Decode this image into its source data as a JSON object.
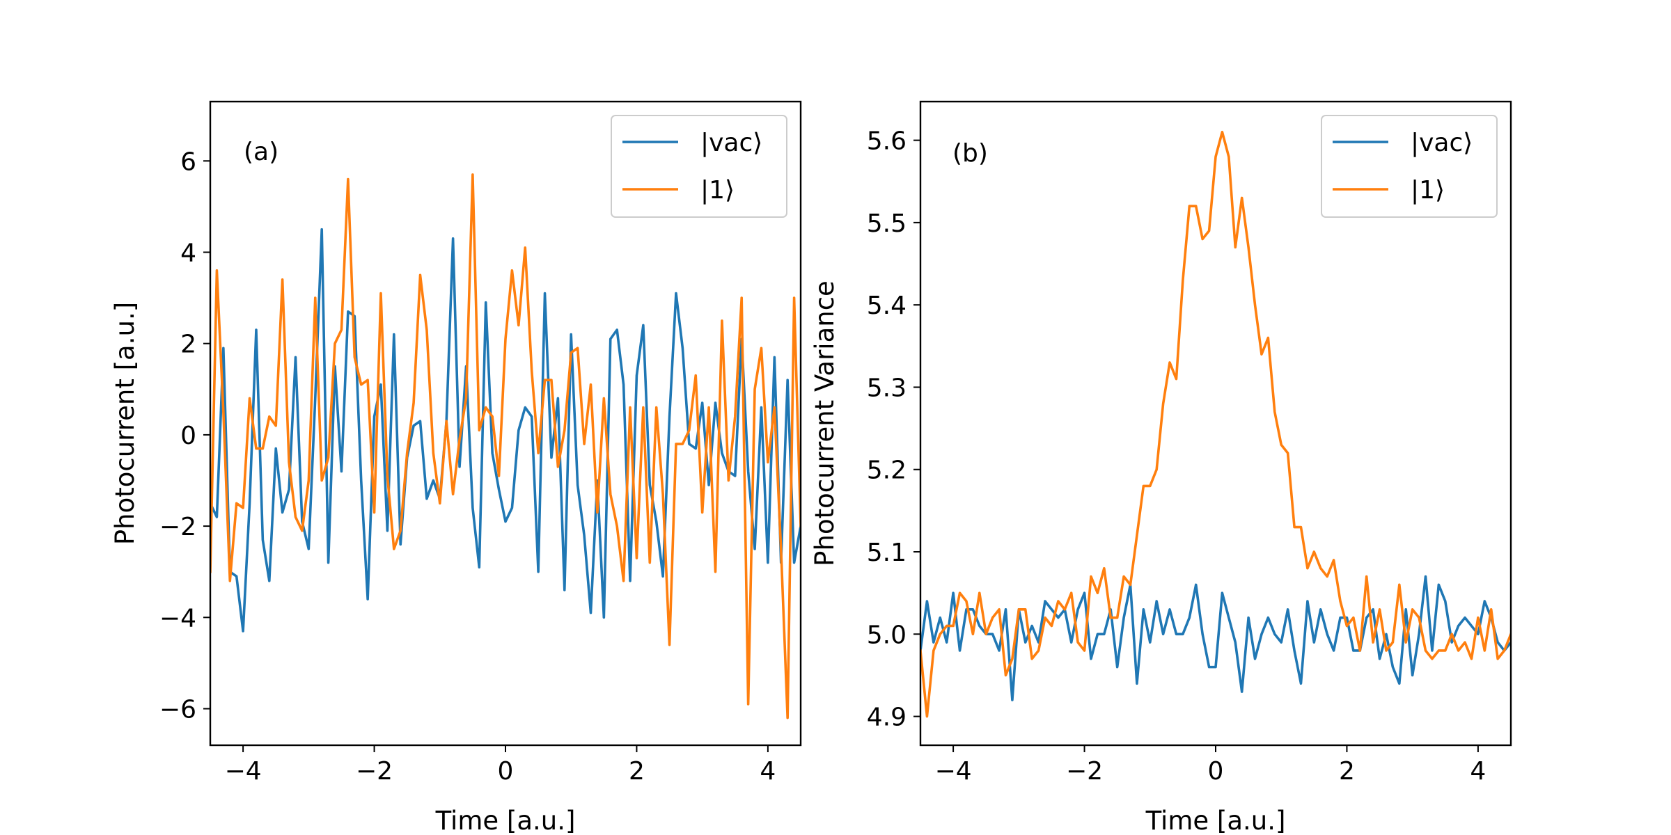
{
  "chart_data": [
    {
      "type": "line",
      "panel_label": "(a)",
      "xlabel": "Time [a.u.]",
      "ylabel": "Photocurrent [a.u.]",
      "xlim": [
        -4.5,
        4.5
      ],
      "ylim": [
        -6.8,
        7.3
      ],
      "xticks": [
        -4,
        -2,
        0,
        2,
        4
      ],
      "xtick_labels": [
        "−4",
        "−2",
        "0",
        "2",
        "4"
      ],
      "yticks": [
        -6,
        -4,
        -2,
        0,
        2,
        4,
        6
      ],
      "ytick_labels": [
        "−6",
        "−4",
        "−2",
        "0",
        "2",
        "4",
        "6"
      ],
      "legend": {
        "position": "top-right",
        "entries": [
          "|vac⟩",
          "|1⟩"
        ]
      },
      "x": [
        -4.5,
        -4.4,
        -4.3,
        -4.2,
        -4.1,
        -4.0,
        -3.9,
        -3.8,
        -3.7,
        -3.6,
        -3.5,
        -3.4,
        -3.3,
        -3.2,
        -3.1,
        -3.0,
        -2.9,
        -2.8,
        -2.7,
        -2.6,
        -2.5,
        -2.4,
        -2.3,
        -2.2,
        -2.1,
        -2.0,
        -1.9,
        -1.8,
        -1.7,
        -1.6,
        -1.5,
        -1.4,
        -1.3,
        -1.2,
        -1.1,
        -1.0,
        -0.9,
        -0.8,
        -0.7,
        -0.6,
        -0.5,
        -0.4,
        -0.3,
        -0.2,
        -0.1,
        0.0,
        0.1,
        0.2,
        0.3,
        0.4,
        0.5,
        0.6,
        0.7,
        0.8,
        0.9,
        1.0,
        1.1,
        1.2,
        1.3,
        1.4,
        1.5,
        1.6,
        1.7,
        1.8,
        1.9,
        2.0,
        2.1,
        2.2,
        2.3,
        2.4,
        2.5,
        2.6,
        2.7,
        2.8,
        2.9,
        3.0,
        3.1,
        3.2,
        3.3,
        3.4,
        3.5,
        3.6,
        3.7,
        3.8,
        3.9,
        4.0,
        4.1,
        4.2,
        4.3,
        4.4,
        4.5
      ],
      "series": [
        {
          "name": "|vac⟩",
          "color": "#1f77b4",
          "values": [
            -1.5,
            -1.8,
            1.9,
            -3.0,
            -3.1,
            -4.3,
            -1.5,
            2.3,
            -2.3,
            -3.2,
            -0.3,
            -1.7,
            -1.2,
            1.7,
            -1.9,
            -2.5,
            0.8,
            4.5,
            -2.8,
            1.5,
            -0.8,
            2.7,
            2.6,
            -1.0,
            -3.6,
            0.4,
            1.1,
            -2.1,
            2.2,
            -2.4,
            -0.5,
            0.2,
            0.3,
            -1.4,
            -1.0,
            -1.4,
            0.3,
            4.3,
            -0.7,
            1.5,
            -1.6,
            -2.9,
            2.9,
            -0.4,
            -1.2,
            -1.9,
            -1.6,
            0.1,
            0.6,
            0.4,
            -3.0,
            3.1,
            -0.5,
            0.8,
            -3.4,
            2.2,
            -1.1,
            -2.2,
            -3.9,
            -1.0,
            -4.0,
            2.1,
            2.3,
            1.1,
            -3.2,
            1.3,
            2.4,
            -1.1,
            -1.9,
            -3.1,
            0.4,
            3.1,
            1.9,
            -0.2,
            -0.3,
            0.7,
            -1.1,
            0.7,
            -0.4,
            -0.8,
            -0.9,
            2.1,
            -0.8,
            -2.5,
            0.6,
            -2.8,
            1.7,
            -2.8,
            1.2,
            -2.8,
            -2.0
          ]
        },
        {
          "name": "|1⟩",
          "color": "#ff7f0e",
          "values": [
            -3.0,
            3.6,
            0.5,
            -3.2,
            -1.5,
            -1.6,
            0.8,
            -0.3,
            -0.3,
            0.4,
            0.2,
            3.4,
            -0.6,
            -1.8,
            -2.1,
            -1.0,
            3.0,
            -1.0,
            -0.5,
            2.0,
            2.3,
            5.6,
            1.7,
            1.1,
            1.2,
            -1.7,
            3.1,
            -0.9,
            -2.5,
            -2.1,
            -0.4,
            0.7,
            3.5,
            2.3,
            -0.4,
            -1.5,
            0.3,
            -1.3,
            -0.1,
            0.8,
            5.7,
            0.1,
            0.6,
            0.4,
            -0.9,
            2.1,
            3.6,
            2.4,
            4.1,
            1.4,
            -0.4,
            1.2,
            1.2,
            -0.7,
            0.1,
            1.8,
            1.9,
            -0.2,
            1.1,
            -1.7,
            0.8,
            -1.3,
            -2.0,
            -3.2,
            0.6,
            -2.7,
            0.6,
            -2.8,
            0.6,
            -1.3,
            -4.6,
            -0.2,
            -0.2,
            0.1,
            1.3,
            -1.7,
            0.6,
            -3.0,
            2.5,
            -1.0,
            0.4,
            3.0,
            -5.9,
            1.0,
            1.9,
            -0.6,
            0.6,
            -2.5,
            -6.2,
            3.0,
            -2.0
          ]
        }
      ]
    },
    {
      "type": "line",
      "panel_label": "(b)",
      "xlabel": "Time [a.u.]",
      "ylabel": "Photocurrent Variance",
      "xlim": [
        -4.5,
        4.5
      ],
      "ylim": [
        4.865,
        5.647
      ],
      "xticks": [
        -4,
        -2,
        0,
        2,
        4
      ],
      "xtick_labels": [
        "−4",
        "−2",
        "0",
        "2",
        "4"
      ],
      "yticks": [
        4.9,
        5.0,
        5.1,
        5.2,
        5.3,
        5.4,
        5.5,
        5.6
      ],
      "ytick_labels": [
        "4.9",
        "5.0",
        "5.1",
        "5.2",
        "5.3",
        "5.4",
        "5.5",
        "5.6"
      ],
      "legend": {
        "position": "top-right",
        "entries": [
          "|vac⟩",
          "|1⟩"
        ]
      },
      "x": [
        -4.5,
        -4.4,
        -4.3,
        -4.2,
        -4.1,
        -4.0,
        -3.9,
        -3.8,
        -3.7,
        -3.6,
        -3.5,
        -3.4,
        -3.3,
        -3.2,
        -3.1,
        -3.0,
        -2.9,
        -2.8,
        -2.7,
        -2.6,
        -2.5,
        -2.4,
        -2.3,
        -2.2,
        -2.1,
        -2.0,
        -1.9,
        -1.8,
        -1.7,
        -1.6,
        -1.5,
        -1.4,
        -1.3,
        -1.2,
        -1.1,
        -1.0,
        -0.9,
        -0.8,
        -0.7,
        -0.6,
        -0.5,
        -0.4,
        -0.3,
        -0.2,
        -0.1,
        0.0,
        0.1,
        0.2,
        0.3,
        0.4,
        0.5,
        0.6,
        0.7,
        0.8,
        0.9,
        1.0,
        1.1,
        1.2,
        1.3,
        1.4,
        1.5,
        1.6,
        1.7,
        1.8,
        1.9,
        2.0,
        2.1,
        2.2,
        2.3,
        2.4,
        2.5,
        2.6,
        2.7,
        2.8,
        2.9,
        3.0,
        3.1,
        3.2,
        3.3,
        3.4,
        3.5,
        3.6,
        3.7,
        3.8,
        3.9,
        4.0,
        4.1,
        4.2,
        4.3,
        4.4,
        4.5
      ],
      "series": [
        {
          "name": "|vac⟩",
          "color": "#1f77b4",
          "values": [
            4.98,
            5.04,
            4.99,
            5.02,
            4.99,
            5.05,
            4.98,
            5.03,
            5.03,
            5.01,
            5.0,
            5.0,
            4.98,
            5.03,
            4.92,
            5.03,
            4.99,
            5.01,
            4.99,
            5.04,
            5.03,
            5.02,
            5.03,
            4.99,
            5.03,
            5.05,
            4.97,
            5.0,
            5.0,
            5.03,
            4.96,
            5.02,
            5.06,
            4.94,
            5.03,
            4.99,
            5.04,
            5.0,
            5.03,
            5.0,
            5.0,
            5.02,
            5.06,
            5.0,
            4.96,
            4.96,
            5.05,
            5.02,
            4.99,
            4.93,
            5.02,
            4.97,
            5.0,
            5.02,
            5.0,
            4.99,
            5.03,
            4.98,
            4.94,
            5.04,
            4.99,
            5.03,
            5.0,
            4.98,
            5.02,
            5.02,
            4.98,
            4.98,
            5.02,
            5.03,
            4.97,
            5.0,
            4.96,
            4.94,
            5.03,
            4.95,
            5.0,
            5.07,
            4.98,
            5.06,
            5.04,
            4.99,
            5.01,
            5.02,
            5.01,
            5.0,
            5.04,
            5.02,
            4.99,
            4.98,
            4.99
          ]
        },
        {
          "name": "|1⟩",
          "color": "#ff7f0e",
          "values": [
            4.98,
            4.9,
            4.98,
            5.0,
            5.01,
            5.01,
            5.05,
            5.04,
            5.0,
            5.05,
            5.0,
            5.02,
            5.03,
            4.95,
            4.97,
            5.03,
            5.03,
            4.97,
            4.98,
            5.02,
            5.01,
            5.04,
            5.03,
            5.05,
            4.99,
            4.98,
            5.07,
            5.05,
            5.08,
            5.02,
            5.02,
            5.07,
            5.06,
            5.12,
            5.18,
            5.18,
            5.2,
            5.28,
            5.33,
            5.31,
            5.43,
            5.52,
            5.52,
            5.48,
            5.49,
            5.58,
            5.61,
            5.58,
            5.47,
            5.53,
            5.47,
            5.4,
            5.34,
            5.36,
            5.27,
            5.23,
            5.22,
            5.13,
            5.13,
            5.08,
            5.1,
            5.08,
            5.07,
            5.09,
            5.04,
            5.01,
            5.02,
            4.98,
            5.07,
            4.99,
            5.03,
            4.98,
            4.99,
            5.06,
            4.99,
            5.03,
            5.02,
            4.98,
            4.97,
            4.98,
            4.98,
            5.0,
            4.98,
            4.99,
            4.97,
            5.02,
            4.98,
            5.03,
            4.97,
            4.98,
            5.0
          ]
        }
      ]
    }
  ]
}
